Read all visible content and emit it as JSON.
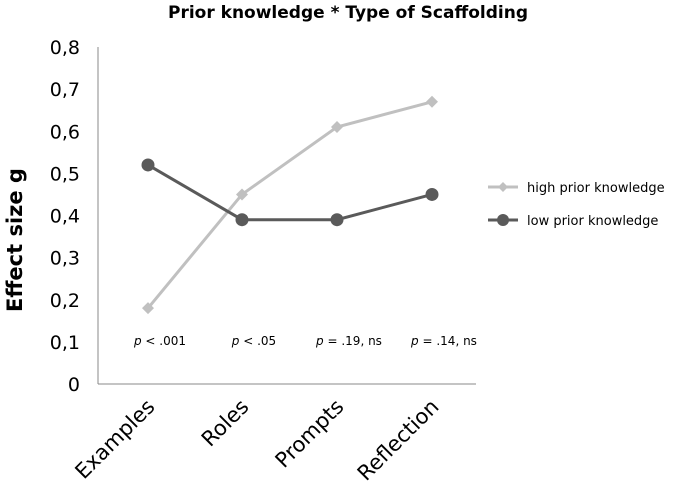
{
  "chart_data": {
    "type": "line",
    "title": "Prior knowledge * Type of Scaffolding",
    "xlabel": "",
    "ylabel": "Effect size g",
    "categories": [
      "Examples",
      "Roles",
      "Prompts",
      "Reflection"
    ],
    "y_ticks": [
      "0",
      "0,1",
      "0,2",
      "0,3",
      "0,4",
      "0,5",
      "0,6",
      "0,7",
      "0,8"
    ],
    "ylim": [
      0,
      0.8
    ],
    "grid": false,
    "legend_position": "right",
    "series": [
      {
        "name": "high prior knowledge",
        "values": [
          0.18,
          0.45,
          0.61,
          0.67
        ],
        "color": "#c0c0c0",
        "marker": "diamond"
      },
      {
        "name": "low prior knowledge",
        "values": [
          0.52,
          0.39,
          0.39,
          0.45
        ],
        "color": "#5a5a5a",
        "marker": "circle"
      }
    ],
    "annotations": [
      {
        "category": "Examples",
        "prefix": "p",
        "text": " < .001"
      },
      {
        "category": "Roles",
        "prefix": "p",
        "text": " < .05"
      },
      {
        "category": "Prompts",
        "prefix": "p",
        "text": " = .19, ns"
      },
      {
        "category": "Reflection",
        "prefix": "p",
        "text": " = .14, ns"
      }
    ]
  }
}
